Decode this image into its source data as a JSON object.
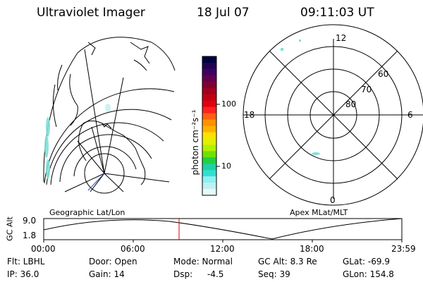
{
  "header": {
    "title": "Ultraviolet Imager",
    "date": "18 Jul 07",
    "time": "09:11:03 UT"
  },
  "left_panel": {
    "caption": "Geographic Lat/Lon"
  },
  "colorbar": {
    "label": "photon cm⁻²s⁻¹",
    "ticks": [
      "100",
      "10"
    ],
    "colors": [
      "#000040",
      "#200050",
      "#400060",
      "#600050",
      "#800030",
      "#a00020",
      "#c00010",
      "#e00010",
      "#ff2020",
      "#ff6010",
      "#ff9000",
      "#ffb000",
      "#ffe000",
      "#e0f000",
      "#b0f000",
      "#70e000",
      "#20d040",
      "#20d0a0",
      "#30e0d0",
      "#90f0f0",
      "#c0f0f0",
      "#e8f8f8"
    ]
  },
  "right_panel": {
    "caption": "Apex MLat/MLT",
    "mlt_labels": {
      "top": "12",
      "bottom": "0",
      "left": "18",
      "right": "6"
    },
    "lat_labels": [
      "60",
      "70",
      "80"
    ]
  },
  "altitude_plot": {
    "ylabel": "GC Alt",
    "ymax": "9.0",
    "ymin": "1.8",
    "xticks": [
      "00:00",
      "06:00",
      "12:00",
      "18:00",
      "23:59"
    ]
  },
  "info": {
    "flt": "Flt: LBHL",
    "door": "Door: Open",
    "mode": "Mode: Normal",
    "gc_alt": "GC Alt: 8.3 Re",
    "glat": "GLat: -69.9",
    "ip": "IP: 36.0",
    "gain": "Gain: 14",
    "dsp_label": "Dsp:",
    "dsp_value": "-4.5",
    "seq": "Seq: 39",
    "glon": "GLon: 154.8"
  },
  "colors": {
    "cursor": "#e00000",
    "aurora": "#80e0d8"
  }
}
